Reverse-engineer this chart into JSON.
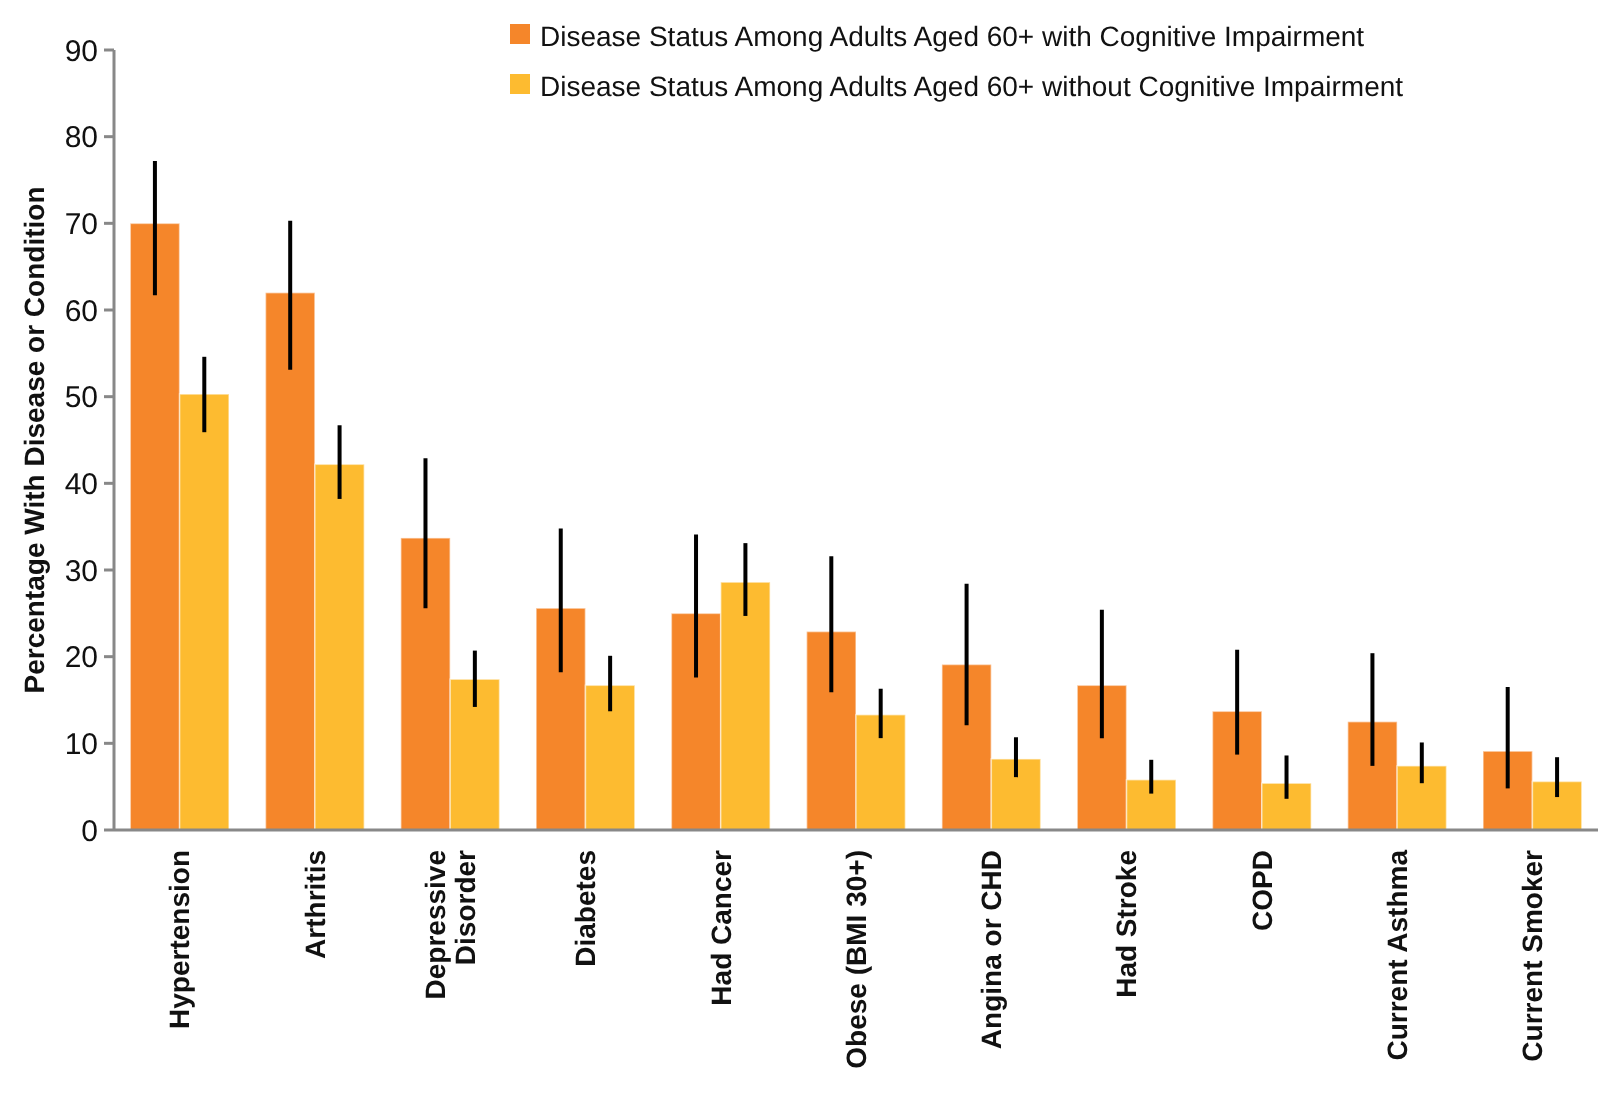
{
  "chart_data": {
    "type": "bar",
    "ylabel": "Percentage With Disease or Condition",
    "categories": [
      "Hypertension",
      "Arthritis",
      "Depressive Disorder",
      "Diabetes",
      "Had Cancer",
      "Obese (BMI 30+)",
      "Angina or CHD",
      "Had Stroke",
      "COPD",
      "Current Asthma",
      "Current Smoker"
    ],
    "series": [
      {
        "name": "Disease Status Among Adults Aged 60+ with Cognitive Impairment",
        "color": "#f5862a",
        "values": [
          70.0,
          62.0,
          33.7,
          25.6,
          25.0,
          22.9,
          19.1,
          16.7,
          13.7,
          12.5,
          9.1
        ],
        "errors": [
          [
            61.7,
            77.2
          ],
          [
            53.1,
            70.3
          ],
          [
            25.6,
            42.9
          ],
          [
            18.2,
            34.8
          ],
          [
            17.6,
            34.1
          ],
          [
            15.9,
            31.6
          ],
          [
            12.1,
            28.4
          ],
          [
            10.6,
            25.4
          ],
          [
            8.7,
            20.8
          ],
          [
            7.4,
            20.4
          ],
          [
            4.8,
            16.5
          ]
        ]
      },
      {
        "name": "Disease Status Among Adults Aged 60+ without Cognitive Impairment",
        "color": "#fdbb30",
        "values": [
          50.3,
          42.2,
          17.4,
          16.7,
          28.6,
          13.3,
          8.2,
          5.8,
          5.4,
          7.4,
          5.6
        ],
        "errors": [
          [
            45.9,
            54.6
          ],
          [
            38.2,
            46.7
          ],
          [
            14.2,
            20.7
          ],
          [
            13.7,
            20.1
          ],
          [
            24.7,
            33.1
          ],
          [
            10.6,
            16.3
          ],
          [
            6.1,
            10.7
          ],
          [
            4.2,
            8.1
          ],
          [
            3.6,
            8.6
          ],
          [
            5.4,
            10.1
          ],
          [
            3.8,
            8.4
          ]
        ]
      }
    ],
    "ylim": [
      0,
      90
    ],
    "yticks": [
      0,
      10,
      20,
      30,
      40,
      50,
      60,
      70,
      80,
      90
    ],
    "grid": false,
    "legend": "top"
  }
}
